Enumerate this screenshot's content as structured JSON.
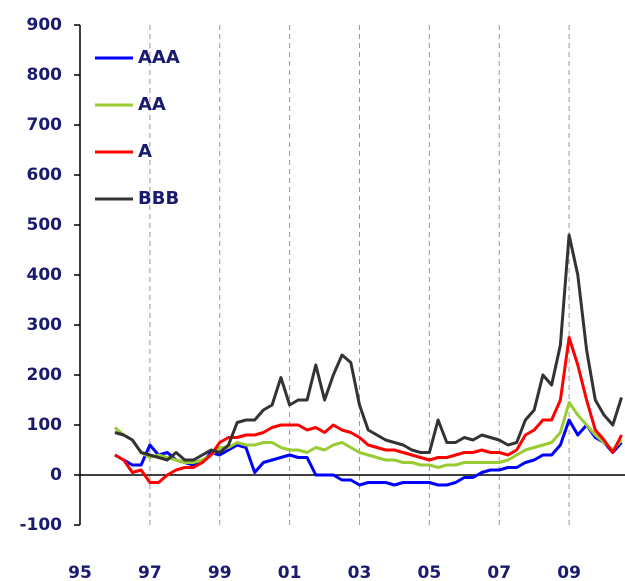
{
  "chart_data": {
    "type": "line",
    "x": [
      1996,
      1996.25,
      1996.5,
      1996.75,
      1997,
      1997.25,
      1997.5,
      1997.75,
      1998,
      1998.25,
      1998.5,
      1998.75,
      1999,
      1999.25,
      1999.5,
      1999.75,
      2000,
      2000.25,
      2000.5,
      2000.75,
      2001,
      2001.25,
      2001.5,
      2001.75,
      2002,
      2002.25,
      2002.5,
      2002.75,
      2003,
      2003.25,
      2003.5,
      2003.75,
      2004,
      2004.25,
      2004.5,
      2004.75,
      2005,
      2005.25,
      2005.5,
      2005.75,
      2006,
      2006.25,
      2006.5,
      2006.75,
      2007,
      2007.25,
      2007.5,
      2007.75,
      2008,
      2008.25,
      2008.5,
      2008.75,
      2009,
      2009.25,
      2009.5,
      2009.75,
      2010,
      2010.25,
      2010.5
    ],
    "series": [
      {
        "name": "AAA",
        "color": "#0000ff",
        "values": [
          40,
          30,
          20,
          20,
          60,
          40,
          45,
          30,
          25,
          20,
          25,
          45,
          40,
          50,
          60,
          55,
          5,
          25,
          30,
          35,
          40,
          35,
          35,
          0,
          0,
          0,
          -10,
          -10,
          -20,
          -15,
          -15,
          -15,
          -20,
          -15,
          -15,
          -15,
          -15,
          -20,
          -20,
          -15,
          -5,
          -5,
          5,
          10,
          10,
          15,
          15,
          25,
          30,
          40,
          40,
          60,
          110,
          80,
          100,
          75,
          65,
          45,
          65
        ]
      },
      {
        "name": "AA",
        "color": "#99cc33",
        "values": [
          95,
          80,
          70,
          45,
          35,
          40,
          35,
          30,
          25,
          25,
          30,
          40,
          55,
          55,
          65,
          60,
          60,
          65,
          65,
          55,
          50,
          50,
          45,
          55,
          50,
          60,
          65,
          55,
          45,
          40,
          35,
          30,
          30,
          25,
          25,
          20,
          20,
          15,
          20,
          20,
          25,
          25,
          25,
          25,
          25,
          30,
          40,
          50,
          55,
          60,
          65,
          85,
          145,
          120,
          100,
          80,
          65,
          50,
          70
        ]
      },
      {
        "name": "A",
        "color": "#ff0000",
        "values": [
          40,
          30,
          5,
          10,
          -15,
          -15,
          0,
          10,
          15,
          15,
          25,
          40,
          65,
          75,
          75,
          80,
          80,
          85,
          95,
          100,
          100,
          100,
          90,
          95,
          85,
          100,
          90,
          85,
          75,
          60,
          55,
          50,
          50,
          45,
          40,
          35,
          30,
          35,
          35,
          40,
          45,
          45,
          50,
          45,
          45,
          40,
          50,
          80,
          90,
          110,
          110,
          150,
          275,
          220,
          150,
          90,
          70,
          45,
          80
        ]
      },
      {
        "name": "BBB",
        "color": "#333333",
        "values": [
          85,
          80,
          70,
          45,
          40,
          35,
          30,
          45,
          30,
          30,
          40,
          50,
          45,
          60,
          105,
          110,
          110,
          130,
          140,
          195,
          140,
          150,
          150,
          220,
          150,
          200,
          240,
          225,
          140,
          90,
          80,
          70,
          65,
          60,
          50,
          45,
          45,
          110,
          65,
          65,
          75,
          70,
          80,
          75,
          70,
          60,
          65,
          110,
          130,
          200,
          180,
          260,
          480,
          400,
          250,
          150,
          120,
          100,
          155
        ]
      }
    ],
    "xlim": [
      1995,
      2010.6
    ],
    "ylim": [
      -100,
      900
    ],
    "xticks": [
      {
        "value": 1995,
        "label": "95"
      },
      {
        "value": 1997,
        "label": "97"
      },
      {
        "value": 1999,
        "label": "99"
      },
      {
        "value": 2001,
        "label": "01"
      },
      {
        "value": 2003,
        "label": "03"
      },
      {
        "value": 2005,
        "label": "05"
      },
      {
        "value": 2007,
        "label": "07"
      },
      {
        "value": 2009,
        "label": "09"
      }
    ],
    "yticks": [
      -100,
      0,
      100,
      200,
      300,
      400,
      500,
      600,
      700,
      800,
      900
    ],
    "grid": true,
    "legend": "upper-left"
  }
}
